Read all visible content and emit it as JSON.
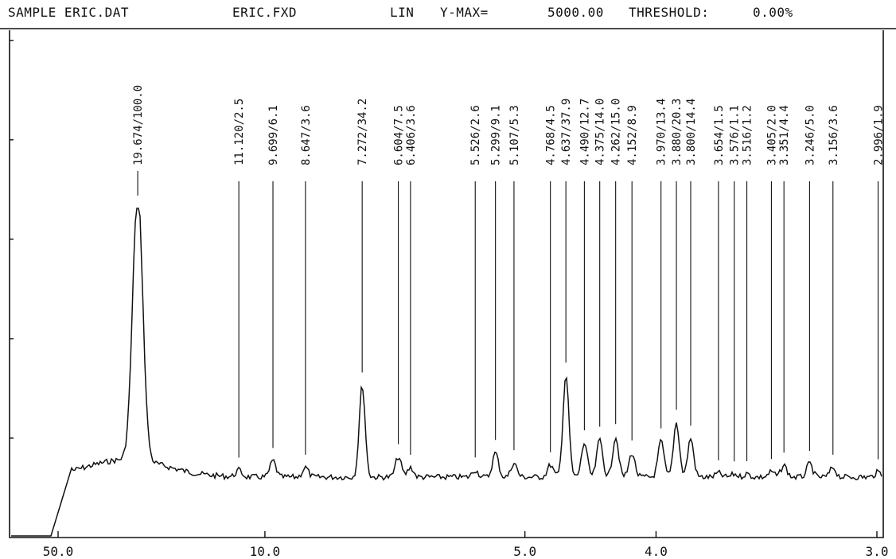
{
  "header": {
    "sample": "SAMPLE ERIC.DAT",
    "file": "ERIC.FXD",
    "scale": "LIN",
    "ymax_label": "Y-MAX=",
    "ymax_value": "5000.00",
    "threshold_label": "THRESHOLD:",
    "threshold_value": "0.00%"
  },
  "chart_data": {
    "type": "line",
    "title": "",
    "xlabel": "",
    "ylabel": "",
    "ylim": [
      0,
      5000
    ],
    "x_ticks": [
      "50.0",
      "10.0",
      "5.0",
      "4.0",
      "3.0"
    ],
    "peaks": [
      {
        "d": "19.674",
        "intensity": "100.0"
      },
      {
        "d": "11.120",
        "intensity": "2.5"
      },
      {
        "d": "9.699",
        "intensity": "6.1"
      },
      {
        "d": "8.647",
        "intensity": "3.6"
      },
      {
        "d": "7.272",
        "intensity": "34.2"
      },
      {
        "d": "6.604",
        "intensity": "7.5"
      },
      {
        "d": "6.406",
        "intensity": "3.6"
      },
      {
        "d": "5.526",
        "intensity": "2.6"
      },
      {
        "d": "5.299",
        "intensity": "9.1"
      },
      {
        "d": "5.107",
        "intensity": "5.3"
      },
      {
        "d": "4.768",
        "intensity": "4.5"
      },
      {
        "d": "4.637",
        "intensity": "37.9"
      },
      {
        "d": "4.490",
        "intensity": "12.7"
      },
      {
        "d": "4.375",
        "intensity": "14.0"
      },
      {
        "d": "4.262",
        "intensity": "15.0"
      },
      {
        "d": "4.152",
        "intensity": "8.9"
      },
      {
        "d": "3.970",
        "intensity": "13.4"
      },
      {
        "d": "3.880",
        "intensity": "20.3"
      },
      {
        "d": "3.800",
        "intensity": "14.4"
      },
      {
        "d": "3.654",
        "intensity": "1.5"
      },
      {
        "d": "3.576",
        "intensity": "1.1"
      },
      {
        "d": "3.516",
        "intensity": "1.2"
      },
      {
        "d": "3.405",
        "intensity": "2.0"
      },
      {
        "d": "3.351",
        "intensity": "4.4"
      },
      {
        "d": "3.246",
        "intensity": "5.0"
      },
      {
        "d": "3.156",
        "intensity": "3.6"
      },
      {
        "d": "2.996",
        "intensity": "1.9"
      }
    ]
  }
}
